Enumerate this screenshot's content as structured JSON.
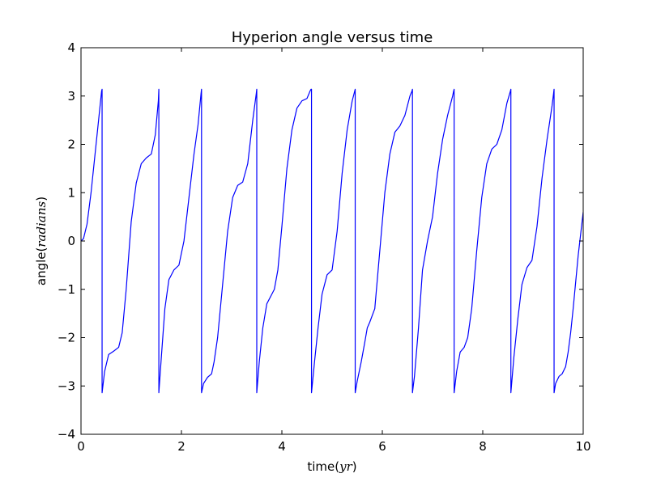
{
  "chart_data": {
    "type": "line",
    "title": "Hyperion angle versus time",
    "xlabel_prefix": "time(",
    "xlabel_math": "yr",
    "xlabel_suffix": ")",
    "ylabel_prefix": "angle(",
    "ylabel_math": "radians",
    "ylabel_suffix": ")",
    "xlim": [
      0,
      10
    ],
    "ylim": [
      -4,
      4
    ],
    "xticks": [
      0,
      2,
      4,
      6,
      8,
      10
    ],
    "yticks": [
      -4,
      -3,
      -2,
      -1,
      0,
      1,
      2,
      3,
      4
    ],
    "xtick_labels": [
      "0",
      "2",
      "4",
      "6",
      "8",
      "10"
    ],
    "ytick_labels": [
      "−4",
      "−3",
      "−2",
      "−1",
      "0",
      "1",
      "2",
      "3",
      "4"
    ],
    "grid": false,
    "series": [
      {
        "color": "#0000ff",
        "x": [
          0.0,
          0.05,
          0.12,
          0.2,
          0.28,
          0.35,
          0.41,
          0.42,
          0.42,
          0.47,
          0.55,
          0.65,
          0.75,
          0.82,
          0.9,
          1.0,
          1.1,
          1.2,
          1.3,
          1.4,
          1.48,
          1.54,
          1.55,
          1.55,
          1.6,
          1.67,
          1.75,
          1.85,
          1.95,
          2.05,
          2.15,
          2.25,
          2.33,
          2.39,
          2.4,
          2.4,
          2.44,
          2.52,
          2.6,
          2.65,
          2.72,
          2.82,
          2.92,
          3.02,
          3.12,
          3.22,
          3.32,
          3.42,
          3.49,
          3.5,
          3.5,
          3.55,
          3.62,
          3.7,
          3.8,
          3.85,
          3.92,
          4.0,
          4.1,
          4.2,
          4.3,
          4.4,
          4.5,
          4.56,
          4.58,
          4.59,
          4.59,
          4.65,
          4.72,
          4.8,
          4.9,
          5.0,
          5.1,
          5.2,
          5.3,
          5.4,
          5.45,
          5.46,
          5.46,
          5.5,
          5.58,
          5.65,
          5.7,
          5.75,
          5.85,
          5.95,
          6.05,
          6.15,
          6.25,
          6.35,
          6.45,
          6.55,
          6.59,
          6.6,
          6.6,
          6.64,
          6.72,
          6.8,
          6.9,
          7.0,
          7.1,
          7.2,
          7.3,
          7.4,
          7.42,
          7.43,
          7.43,
          7.48,
          7.55,
          7.63,
          7.7,
          7.78,
          7.88,
          7.98,
          8.08,
          8.18,
          8.28,
          8.38,
          8.48,
          8.55,
          8.56,
          8.56,
          8.62,
          8.7,
          8.78,
          8.88,
          8.98,
          9.08,
          9.18,
          9.28,
          9.38,
          9.41,
          9.42,
          9.42,
          9.45,
          9.52,
          9.58,
          9.65,
          9.7,
          9.75,
          9.8,
          9.85,
          9.9,
          9.95,
          10.0
        ],
        "y": [
          0.0,
          0.05,
          0.35,
          1.0,
          1.8,
          2.5,
          3.1,
          3.14,
          -3.14,
          -2.7,
          -2.35,
          -2.28,
          -2.2,
          -1.9,
          -1.0,
          0.4,
          1.2,
          1.6,
          1.72,
          1.8,
          2.2,
          2.9,
          3.14,
          -3.14,
          -2.4,
          -1.4,
          -0.8,
          -0.6,
          -0.5,
          0.0,
          0.9,
          1.8,
          2.4,
          3.05,
          3.14,
          -3.14,
          -2.95,
          -2.82,
          -2.75,
          -2.5,
          -2.0,
          -0.9,
          0.2,
          0.9,
          1.15,
          1.22,
          1.6,
          2.5,
          3.05,
          3.14,
          -3.14,
          -2.5,
          -1.8,
          -1.3,
          -1.1,
          -1.0,
          -0.6,
          0.3,
          1.5,
          2.3,
          2.75,
          2.9,
          2.95,
          3.1,
          3.14,
          3.14,
          -3.14,
          -2.5,
          -1.8,
          -1.1,
          -0.7,
          -0.6,
          0.2,
          1.4,
          2.3,
          2.9,
          3.1,
          3.14,
          -3.14,
          -2.9,
          -2.5,
          -2.1,
          -1.8,
          -1.68,
          -1.4,
          -0.2,
          1.0,
          1.8,
          2.25,
          2.38,
          2.6,
          3.0,
          3.1,
          3.14,
          -3.14,
          -2.8,
          -1.8,
          -0.6,
          0.0,
          0.5,
          1.4,
          2.1,
          2.6,
          3.0,
          3.1,
          3.14,
          -3.14,
          -2.7,
          -2.3,
          -2.2,
          -2.0,
          -1.4,
          -0.2,
          0.9,
          1.6,
          1.9,
          2.0,
          2.3,
          2.85,
          3.1,
          3.14,
          -3.14,
          -2.4,
          -1.6,
          -0.9,
          -0.55,
          -0.4,
          0.3,
          1.3,
          2.1,
          2.8,
          3.05,
          3.14,
          -3.14,
          -2.95,
          -2.8,
          -2.75,
          -2.6,
          -2.3,
          -1.9,
          -1.4,
          -0.85,
          -0.3,
          0.15,
          0.6
        ]
      }
    ]
  }
}
